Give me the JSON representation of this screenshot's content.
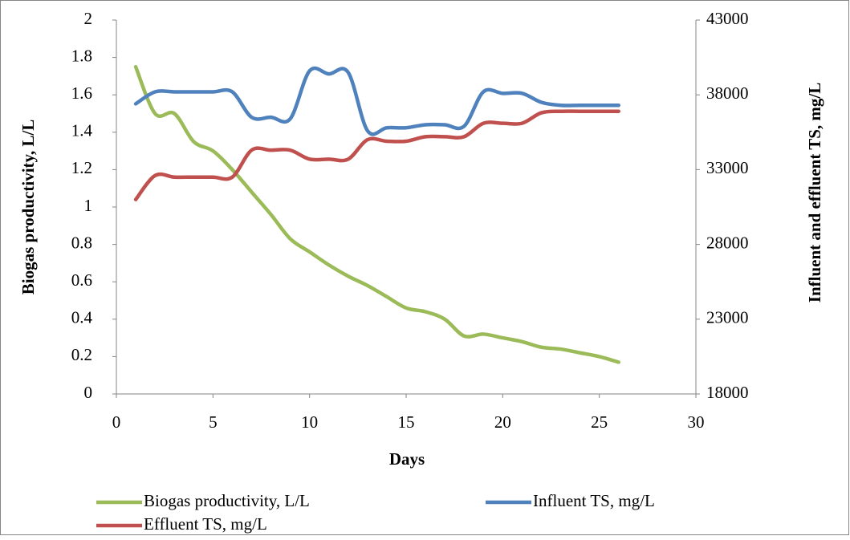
{
  "chart_data": {
    "type": "line",
    "x_label": "Days",
    "y_label": "Biogas productivity, L/L",
    "y2_label": "Influent and effluent TS, mg/L",
    "x": [
      1,
      2,
      3,
      4,
      5,
      6,
      7,
      8,
      9,
      10,
      11,
      12,
      13,
      14,
      15,
      16,
      17,
      18,
      19,
      20,
      21,
      22,
      23,
      24,
      25,
      26
    ],
    "series": [
      {
        "name": "Biogas productivity, L/L",
        "color": "#9bbb59",
        "values": [
          1.75,
          1.5,
          1.5,
          1.35,
          1.3,
          1.2,
          1.08,
          0.96,
          0.83,
          0.76,
          0.69,
          0.63,
          0.58,
          0.52,
          0.46,
          0.44,
          0.4,
          0.31,
          0.32,
          0.3,
          0.28,
          0.25,
          0.24,
          0.22,
          0.2,
          0.17
        ]
      },
      {
        "name": "Influent TS, mg/L",
        "color": "#4f81bd",
        "axis": "y2",
        "values": [
          37400,
          38200,
          38200,
          38200,
          38200,
          38200,
          36500,
          36500,
          36400,
          39600,
          39400,
          39500,
          35600,
          35800,
          35800,
          36000,
          36000,
          35900,
          38200,
          38100,
          38100,
          37500,
          37300,
          37300,
          37300,
          37300
        ]
      },
      {
        "name": "Effluent TS, mg/L",
        "color": "#c0504d",
        "axis": "y2",
        "values": [
          31000,
          32600,
          32500,
          32500,
          32500,
          32500,
          34300,
          34300,
          34300,
          33700,
          33700,
          33700,
          35000,
          34900,
          34900,
          35200,
          35200,
          35200,
          36100,
          36100,
          36100,
          36800,
          36900,
          36900,
          36900,
          36900
        ]
      }
    ],
    "xlim": [
      0,
      30
    ],
    "xticks": [
      0,
      5,
      10,
      15,
      20,
      25,
      30
    ],
    "ylim": [
      0,
      2
    ],
    "yticks": [
      0,
      0.2,
      0.4,
      0.6,
      0.8,
      1,
      1.2,
      1.4,
      1.6,
      1.8,
      2
    ],
    "y2lim": [
      18000,
      43000
    ],
    "y2ticks": [
      18000,
      23000,
      28000,
      33000,
      38000,
      43000
    ],
    "legend": "bottom"
  }
}
